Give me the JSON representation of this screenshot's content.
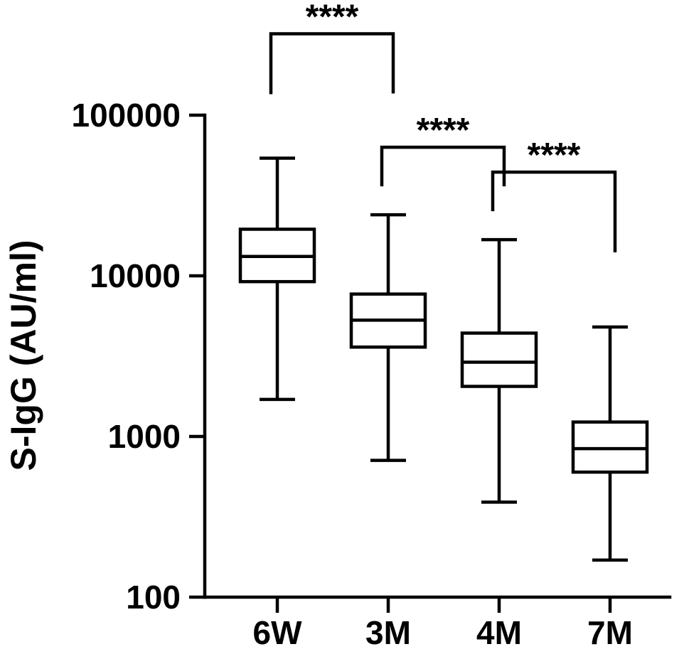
{
  "chart_data": {
    "type": "box",
    "ylabel": "S-IgG (AU/ml)",
    "xlabel": "",
    "yscale": "log",
    "ylim": [
      100,
      100000
    ],
    "yticks": [
      100,
      1000,
      10000,
      100000
    ],
    "ytick_labels": [
      "100",
      "1000",
      "10000",
      "100000"
    ],
    "categories": [
      "6W",
      "3M",
      "4M",
      "7M"
    ],
    "boxes": [
      {
        "category": "6W",
        "min": 1700,
        "q1": 9200,
        "median": 13200,
        "q3": 19500,
        "max": 54000
      },
      {
        "category": "3M",
        "min": 710,
        "q1": 3600,
        "median": 5300,
        "q3": 7700,
        "max": 24000
      },
      {
        "category": "4M",
        "min": 390,
        "q1": 2050,
        "median": 2900,
        "q3": 4400,
        "max": 16800
      },
      {
        "category": "7M",
        "min": 170,
        "q1": 600,
        "median": 840,
        "q3": 1230,
        "max": 4800
      }
    ],
    "significance": [
      {
        "from": "6W",
        "to": "3M",
        "label": "****"
      },
      {
        "from": "3M",
        "to": "4M",
        "label": "****"
      },
      {
        "from": "4M",
        "to": "7M",
        "label": "****"
      }
    ],
    "grid": false,
    "legend": "none"
  }
}
